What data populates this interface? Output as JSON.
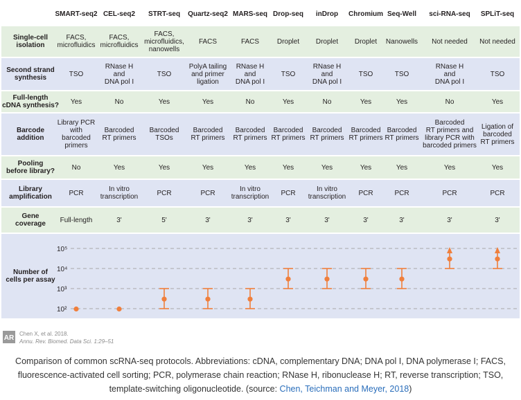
{
  "colors": {
    "header_bg": "#ffffff",
    "green_row": "#e4efe0",
    "blue_row": "#dfe4f3",
    "grid_line": "#ffffff",
    "accent": "#f07f3c",
    "dashed": "#a8a8a8",
    "link": "#2a6ebb"
  },
  "table": {
    "columns": [
      "SMART-seq2",
      "CEL-seq2",
      "STRT-seq",
      "Quartz-seq2",
      "MARS-seq",
      "Drop-seq",
      "inDrop",
      "Chromium",
      "Seq-Well",
      "sci-RNA-seq",
      "SPLiT-seq"
    ],
    "rows": [
      {
        "label": "Single-cell\nisolation",
        "band": "green",
        "cells": [
          "FACS,\nmicrofluidics",
          "FACS,\nmicrofluidics",
          "FACS,\nmicrofluidics,\nnanowells",
          "FACS",
          "FACS",
          "Droplet",
          "Droplet",
          "Droplet",
          "Nanowells",
          "Not needed",
          "Not needed"
        ]
      },
      {
        "label": "Second strand\nsynthesis",
        "band": "blue",
        "cells": [
          "TSO",
          "RNase H\nand\nDNA pol I",
          "TSO",
          "PolyA tailing\nand primer\nligation",
          "RNase H\nand\nDNA pol I",
          "TSO",
          "RNase H\nand\nDNA pol I",
          "TSO",
          "TSO",
          "RNase H\nand\nDNA pol I",
          "TSO"
        ]
      },
      {
        "label": "Full-length\ncDNA synthesis?",
        "band": "green",
        "cells": [
          "Yes",
          "No",
          "Yes",
          "Yes",
          "No",
          "Yes",
          "No",
          "Yes",
          "Yes",
          "No",
          "Yes"
        ]
      },
      {
        "label": "Barcode\naddition",
        "band": "blue",
        "cells": [
          "Library PCR\nwith barcoded\nprimers",
          "Barcoded\nRT primers",
          "Barcoded\nTSOs",
          "Barcoded\nRT primers",
          "Barcoded\nRT primers",
          "Barcoded\nRT primers",
          "Barcoded\nRT primers",
          "Barcoded\nRT primers",
          "Barcoded\nRT primers",
          "Barcoded\nRT primers and\nlibrary PCR with\nbarcoded primers",
          "Ligation of\nbarcoded\nRT primers"
        ]
      },
      {
        "label": "Pooling\nbefore library?",
        "band": "green",
        "cells": [
          "No",
          "Yes",
          "Yes",
          "Yes",
          "Yes",
          "Yes",
          "Yes",
          "Yes",
          "Yes",
          "Yes",
          "Yes"
        ]
      },
      {
        "label": "Library\namplification",
        "band": "blue",
        "cells": [
          "PCR",
          "In vitro\ntranscription",
          "PCR",
          "PCR",
          "In vitro\ntranscription",
          "PCR",
          "In vitro\ntranscription",
          "PCR",
          "PCR",
          "PCR",
          "PCR"
        ]
      },
      {
        "label": "Gene\ncoverage",
        "band": "green",
        "cells": [
          "Full-length",
          "3'",
          "5'",
          "3'",
          "3'",
          "3'",
          "3'",
          "3'",
          "3'",
          "3'",
          "3'"
        ]
      }
    ]
  },
  "chart_data": {
    "type": "scatter",
    "ylabel": "Number of\ncells per assay",
    "yscale": "log",
    "ylim": [
      100,
      100000
    ],
    "ytick_labels": [
      "10²",
      "10³",
      "10⁴",
      "10⁵"
    ],
    "yticks": [
      100,
      1000,
      10000,
      100000
    ],
    "categories": [
      "SMART-seq2",
      "CEL-seq2",
      "STRT-seq",
      "Quartz-seq2",
      "MARS-seq",
      "Drop-seq",
      "inDrop",
      "Chromium",
      "Seq-Well",
      "sci-RNA-seq",
      "SPLiT-seq"
    ],
    "points": [
      {
        "x": "SMART-seq2",
        "y": 96,
        "low": null,
        "high": null,
        "open_high": false
      },
      {
        "x": "CEL-seq2",
        "y": 96,
        "low": null,
        "high": null,
        "open_high": false
      },
      {
        "x": "STRT-seq",
        "y": 300,
        "low": 100,
        "high": 1000,
        "open_high": false
      },
      {
        "x": "Quartz-seq2",
        "y": 300,
        "low": 100,
        "high": 1000,
        "open_high": false
      },
      {
        "x": "MARS-seq",
        "y": 300,
        "low": 100,
        "high": 1000,
        "open_high": false
      },
      {
        "x": "Drop-seq",
        "y": 3000,
        "low": 1000,
        "high": 10000,
        "open_high": false
      },
      {
        "x": "inDrop",
        "y": 3000,
        "low": 1000,
        "high": 10000,
        "open_high": false
      },
      {
        "x": "Chromium",
        "y": 3000,
        "low": 1000,
        "high": 10000,
        "open_high": false
      },
      {
        "x": "Seq-Well",
        "y": 3000,
        "low": 1000,
        "high": 10000,
        "open_high": false
      },
      {
        "x": "sci-RNA-seq",
        "y": 30000,
        "low": 10000,
        "high": 100000,
        "open_high": true
      },
      {
        "x": "SPLiT-seq",
        "y": 30000,
        "low": 10000,
        "high": 100000,
        "open_high": true
      }
    ],
    "grid": "dashed-horizontal"
  },
  "credit": {
    "logo_text": "AR",
    "line1": "Chen X, et al. 2018.",
    "line2": "Annu. Rev. Biomed. Data Sci. 1:29–51"
  },
  "caption": {
    "text_before": "Comparison of common scRNA-seq protocols. Abbreviations: cDNA, complementary DNA; DNA pol I, DNA polymerase I; FACS, fluorescence-activated cell sorting; PCR, polymerase chain reaction; RNase H, ribonuclease H; RT, reverse transcription; TSO, template-switching oligonucleotide. (source: ",
    "link_text": "Chen, Teichman and Meyer, 2018",
    "text_after": ")"
  }
}
